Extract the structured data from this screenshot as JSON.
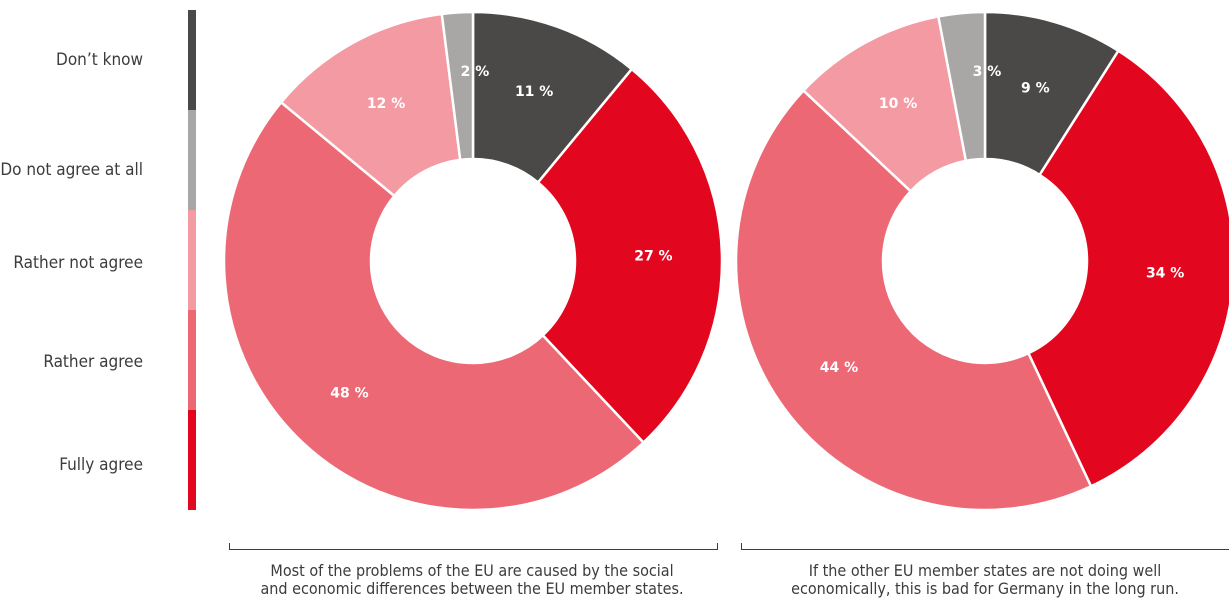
{
  "legend": [
    {
      "label": "Don’t know",
      "color": "#4a4947"
    },
    {
      "label": "Do not agree at all",
      "color": "#a8a7a6"
    },
    {
      "label": "Rather not agree",
      "color": "#f49aa2"
    },
    {
      "label": "Rather agree",
      "color": "#ec6874"
    },
    {
      "label": "Fully agree",
      "color": "#e2071e"
    }
  ],
  "chart_data": [
    {
      "type": "pie",
      "categories": [
        "Don’t know",
        "Fully agree",
        "Rather agree",
        "Rather not agree",
        "Do not agree at all"
      ],
      "values": [
        11,
        27,
        48,
        12,
        2
      ],
      "labels": [
        "11 %",
        "27 %",
        "48 %",
        "12 %",
        "2 %"
      ],
      "colors": [
        "#4a4947",
        "#e2071e",
        "#ec6874",
        "#f49aa2",
        "#a8a7a6"
      ],
      "caption_line1": "Most of the problems of the EU are caused by the social",
      "caption_line2": "and economic differences between the EU member states."
    },
    {
      "type": "pie",
      "categories": [
        "Don’t know",
        "Fully agree",
        "Rather agree",
        "Rather not agree",
        "Do not agree at all"
      ],
      "values": [
        9,
        34,
        44,
        10,
        3
      ],
      "labels": [
        "9 %",
        "34 %",
        "44 %",
        "10 %",
        "3 %"
      ],
      "colors": [
        "#4a4947",
        "#e2071e",
        "#ec6874",
        "#f49aa2",
        "#a8a7a6"
      ],
      "caption_line1": "If the other EU member states are not doing well",
      "caption_line2": "economically, this is bad for Germany in the long run."
    }
  ]
}
